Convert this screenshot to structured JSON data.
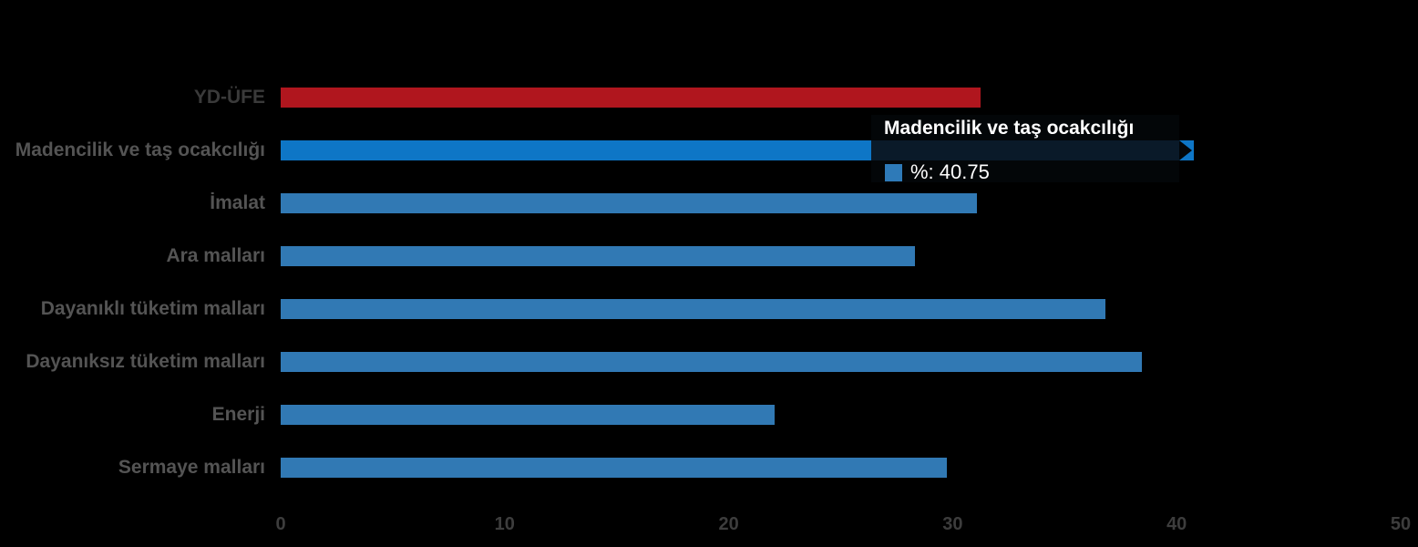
{
  "chart_data": {
    "type": "bar",
    "orientation": "horizontal",
    "title": "",
    "xlabel": "",
    "ylabel": "",
    "categories": [
      "YD-ÜFE",
      "Madencilik ve taş ocakcılığı",
      "İmalat",
      "Ara malları",
      "Dayanıklı tüketim malları",
      "Dayanıksız tüketim malları",
      "Enerji",
      "Sermaye malları"
    ],
    "values": [
      31.25,
      40.75,
      31.1,
      28.3,
      36.8,
      38.45,
      22.05,
      29.75
    ],
    "bar_colors": [
      "#B0161E",
      "#0E76C6",
      "#3179B4",
      "#3179B4",
      "#3179B4",
      "#3179B4",
      "#3179B4",
      "#3179B4"
    ],
    "label_colors": [
      "#3A3A3A",
      "#545454",
      "#545454",
      "#545454",
      "#545454",
      "#545454",
      "#545454",
      "#545454"
    ],
    "highlighted_index": 1,
    "xlim": [
      0,
      50
    ],
    "xticks": [
      0,
      10,
      20,
      30,
      40,
      50
    ],
    "grid": false,
    "legend_position": "none",
    "background_color": "#000000"
  },
  "tooltip": {
    "title": "Madencilik ve taş ocakcılığı",
    "value_label": "%: 40.75",
    "swatch_color": "#2E7AB8",
    "band_color": "#0A1A29",
    "background_color": "#030608",
    "text_color": "#FFFFFF"
  },
  "axis": {
    "tick_color": "#3D3D3D"
  }
}
